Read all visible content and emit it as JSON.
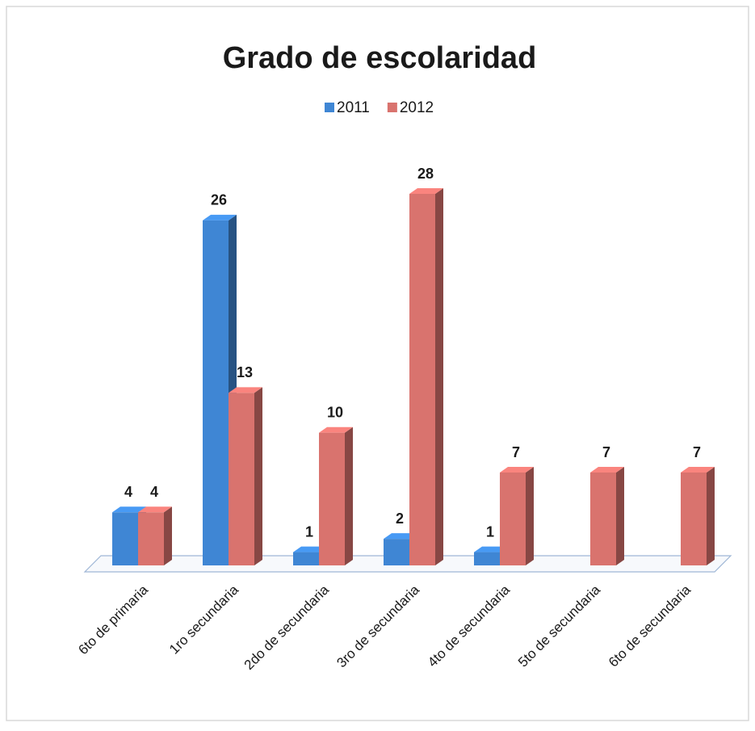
{
  "chart_data": {
    "type": "bar",
    "title": "Grado de escolaridad",
    "categories": [
      "6to de primaria",
      "1ro secundaria",
      "2do de secundaria",
      "3ro de secundaria",
      "4to de secundaria",
      "5to de secundaria",
      "6to de secundaria"
    ],
    "series": [
      {
        "name": "2011",
        "color": "#3f86d4",
        "values": [
          4,
          26,
          1,
          2,
          1,
          null,
          null
        ]
      },
      {
        "name": "2012",
        "color": "#d9736e",
        "values": [
          4,
          13,
          10,
          28,
          7,
          7,
          7
        ]
      }
    ],
    "legend": "top",
    "grid": false
  }
}
